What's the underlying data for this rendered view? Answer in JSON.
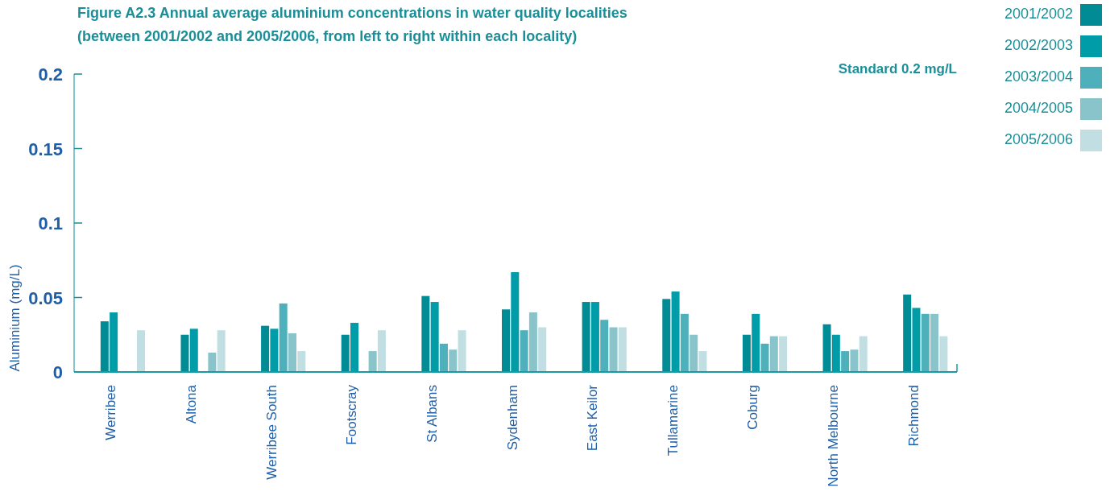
{
  "chart_data": {
    "type": "bar",
    "title": "Figure A2.3 Annual average aluminium concentrations in water quality localities\n(between 2001/2002 and 2005/2006, from left to right within each locality)",
    "ylabel": "Aluminium (mg/L)",
    "annotations": [
      "Standard 0.2 mg/L"
    ],
    "categories": [
      "Werribee",
      "Altona",
      "Werribee South",
      "Footscray",
      "St Albans",
      "Sydenham",
      "East Keilor",
      "Tullamarine",
      "Coburg",
      "North Melbourne",
      "Richmond"
    ],
    "series": [
      {
        "name": "2001/2002",
        "color": "#008b95",
        "values": [
          0.034,
          0.025,
          0.031,
          0.025,
          0.051,
          0.042,
          0.047,
          0.049,
          0.025,
          0.032,
          0.052
        ]
      },
      {
        "name": "2002/2003",
        "color": "#009ca8",
        "values": [
          0.04,
          0.029,
          0.029,
          0.033,
          0.047,
          0.067,
          0.047,
          0.054,
          0.039,
          0.025,
          0.043
        ]
      },
      {
        "name": "2003/2004",
        "color": "#4db0bb",
        "values": [
          null,
          null,
          0.046,
          null,
          0.019,
          0.028,
          0.035,
          0.039,
          0.019,
          0.014,
          0.039
        ]
      },
      {
        "name": "2004/2005",
        "color": "#89c4cb",
        "values": [
          null,
          0.013,
          0.026,
          0.014,
          0.015,
          0.04,
          0.03,
          0.025,
          0.024,
          0.015,
          0.039
        ]
      },
      {
        "name": "2005/2006",
        "color": "#c1dfe3",
        "values": [
          0.028,
          0.028,
          0.014,
          0.028,
          0.028,
          0.03,
          0.03,
          0.014,
          0.024,
          0.024,
          0.024
        ]
      }
    ],
    "ylim": [
      0,
      0.2
    ],
    "yticks": [
      0,
      0.05,
      0.1,
      0.15,
      0.2
    ],
    "grid": false,
    "legend": "top right"
  }
}
